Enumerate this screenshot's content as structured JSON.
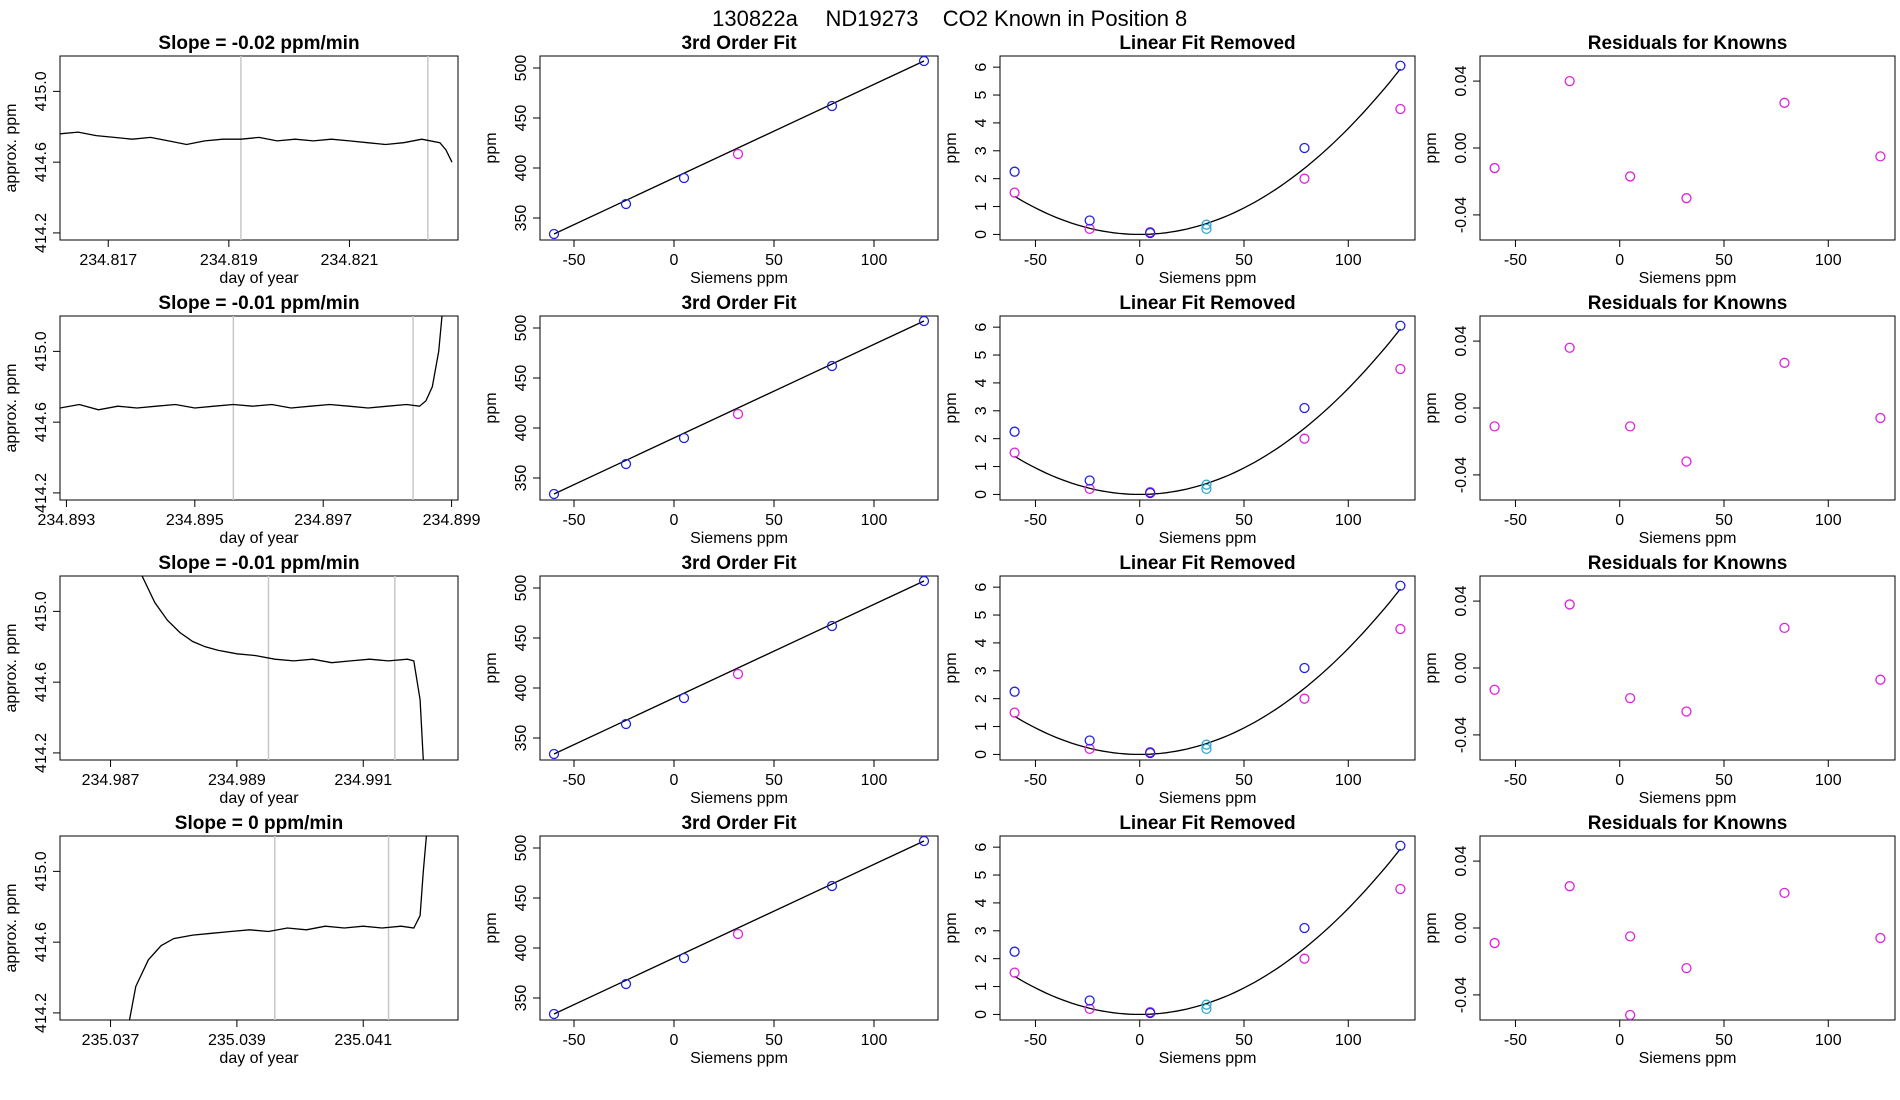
{
  "figure": {
    "title_parts": [
      "130822a",
      "ND19273",
      "CO2 Known in Position  8"
    ]
  },
  "panel_titles": {
    "fit": "3rd Order Fit",
    "linfit": "Linear Fit Removed",
    "resid": "Residuals for Knowns"
  },
  "axis_labels": {
    "time_x": "day of year",
    "time_y": "approx. ppm",
    "siemens_x": "Siemens ppm",
    "ppm_y": "ppm"
  },
  "colors": {
    "line": "#000000",
    "blue": "#2222dd",
    "magenta": "#dd22dd",
    "cyan": "#33a8cc",
    "guide": "#c8c8c8"
  },
  "chart_data": [
    {
      "row": 1,
      "type": "line",
      "title": "Slope =  -0.02  ppm/min",
      "xlabel": "day of year",
      "ylabel": "approx. ppm",
      "xlim": [
        234.8162,
        234.8228
      ],
      "ylim": [
        414.16,
        415.2
      ],
      "xticks": [
        234.817,
        234.819,
        234.821
      ],
      "xtick_labels": [
        "234.817",
        "234.819",
        "234.821"
      ],
      "yticks": [
        414.2,
        414.6,
        415.0
      ],
      "ytick_labels": [
        "414.2",
        "414.6",
        "415.0"
      ],
      "vlines": [
        234.8192,
        234.8223
      ],
      "trace": [
        [
          234.8162,
          414.76
        ],
        [
          234.8165,
          414.77
        ],
        [
          234.8168,
          414.75
        ],
        [
          234.8171,
          414.74
        ],
        [
          234.8174,
          414.73
        ],
        [
          234.8177,
          414.74
        ],
        [
          234.818,
          414.72
        ],
        [
          234.8183,
          414.7
        ],
        [
          234.8186,
          414.72
        ],
        [
          234.8189,
          414.73
        ],
        [
          234.8192,
          414.73
        ],
        [
          234.8195,
          414.74
        ],
        [
          234.8198,
          414.72
        ],
        [
          234.8201,
          414.73
        ],
        [
          234.8204,
          414.72
        ],
        [
          234.8207,
          414.73
        ],
        [
          234.821,
          414.72
        ],
        [
          234.8213,
          414.71
        ],
        [
          234.8216,
          414.7
        ],
        [
          234.8219,
          414.71
        ],
        [
          234.8222,
          414.73
        ],
        [
          234.8225,
          414.71
        ],
        [
          234.8226,
          414.67
        ],
        [
          234.8227,
          414.6
        ]
      ]
    },
    {
      "row": 2,
      "type": "line",
      "title": "Slope =  -0.01  ppm/min",
      "xlabel": "day of year",
      "ylabel": "approx. ppm",
      "xlim": [
        234.8929,
        234.8991
      ],
      "ylim": [
        414.16,
        415.2
      ],
      "xticks": [
        234.893,
        234.895,
        234.897,
        234.899
      ],
      "xtick_labels": [
        "234.893",
        "234.895",
        "234.897",
        "234.899"
      ],
      "yticks": [
        414.2,
        414.6,
        415.0
      ],
      "ytick_labels": [
        "414.2",
        "414.6",
        "415.0"
      ],
      "vlines": [
        234.8956,
        234.8984
      ],
      "trace": [
        [
          234.8929,
          414.68
        ],
        [
          234.8932,
          414.7
        ],
        [
          234.8935,
          414.67
        ],
        [
          234.8938,
          414.69
        ],
        [
          234.8941,
          414.68
        ],
        [
          234.8944,
          414.69
        ],
        [
          234.8947,
          414.7
        ],
        [
          234.895,
          414.68
        ],
        [
          234.8953,
          414.69
        ],
        [
          234.8956,
          414.7
        ],
        [
          234.8959,
          414.69
        ],
        [
          234.8962,
          414.7
        ],
        [
          234.8965,
          414.68
        ],
        [
          234.8968,
          414.69
        ],
        [
          234.8971,
          414.7
        ],
        [
          234.8974,
          414.69
        ],
        [
          234.8977,
          414.68
        ],
        [
          234.898,
          414.69
        ],
        [
          234.8983,
          414.7
        ],
        [
          234.8985,
          414.69
        ],
        [
          234.8986,
          414.72
        ],
        [
          234.8987,
          414.8
        ],
        [
          234.8988,
          415.0
        ],
        [
          234.89885,
          415.2
        ]
      ]
    },
    {
      "row": 3,
      "type": "line",
      "title": "Slope =  -0.01  ppm/min",
      "xlabel": "day of year",
      "ylabel": "approx. ppm",
      "xlim": [
        234.9862,
        234.9925
      ],
      "ylim": [
        414.16,
        415.2
      ],
      "xticks": [
        234.987,
        234.989,
        234.991
      ],
      "xtick_labels": [
        "234.987",
        "234.989",
        "234.991"
      ],
      "yticks": [
        414.2,
        414.6,
        415.0
      ],
      "ytick_labels": [
        "414.2",
        "414.6",
        "415.0"
      ],
      "vlines": [
        234.9895,
        234.9915
      ],
      "trace": [
        [
          234.9875,
          415.2
        ],
        [
          234.9877,
          415.05
        ],
        [
          234.9879,
          414.95
        ],
        [
          234.9881,
          414.88
        ],
        [
          234.9883,
          414.83
        ],
        [
          234.9885,
          414.8
        ],
        [
          234.9887,
          414.78
        ],
        [
          234.989,
          414.76
        ],
        [
          234.9893,
          414.75
        ],
        [
          234.9896,
          414.73
        ],
        [
          234.9899,
          414.72
        ],
        [
          234.9902,
          414.73
        ],
        [
          234.9905,
          414.71
        ],
        [
          234.9908,
          414.72
        ],
        [
          234.9911,
          414.73
        ],
        [
          234.9914,
          414.72
        ],
        [
          234.9917,
          414.73
        ],
        [
          234.9918,
          414.72
        ],
        [
          234.9919,
          414.5
        ],
        [
          234.99195,
          414.16
        ]
      ]
    },
    {
      "row": 4,
      "type": "line",
      "title": "Slope =  0  ppm/min",
      "xlabel": "day of year",
      "ylabel": "approx. ppm",
      "xlim": [
        235.0362,
        235.0425
      ],
      "ylim": [
        414.16,
        415.2
      ],
      "xticks": [
        235.037,
        235.039,
        235.041
      ],
      "xtick_labels": [
        "235.037",
        "235.039",
        "235.041"
      ],
      "yticks": [
        414.2,
        414.6,
        415.0
      ],
      "ytick_labels": [
        "414.2",
        "414.6",
        "415.0"
      ],
      "vlines": [
        235.0396,
        235.0414
      ],
      "trace": [
        [
          235.0373,
          414.16
        ],
        [
          235.0374,
          414.35
        ],
        [
          235.0376,
          414.5
        ],
        [
          235.0378,
          414.58
        ],
        [
          235.038,
          414.62
        ],
        [
          235.0383,
          414.64
        ],
        [
          235.0386,
          414.65
        ],
        [
          235.0389,
          414.66
        ],
        [
          235.0392,
          414.67
        ],
        [
          235.0395,
          414.66
        ],
        [
          235.0398,
          414.68
        ],
        [
          235.0401,
          414.67
        ],
        [
          235.0404,
          414.69
        ],
        [
          235.0407,
          414.68
        ],
        [
          235.041,
          414.69
        ],
        [
          235.0413,
          414.68
        ],
        [
          235.0416,
          414.69
        ],
        [
          235.0418,
          414.68
        ],
        [
          235.0419,
          414.75
        ],
        [
          235.04195,
          415.0
        ],
        [
          235.042,
          415.2
        ]
      ]
    },
    {
      "row_group": [
        1,
        2,
        3,
        4
      ],
      "type": "scatter",
      "title": "3rd Order Fit",
      "xlabel": "Siemens ppm",
      "ylabel": "ppm",
      "xlim": [
        -67,
        132
      ],
      "ylim": [
        328,
        512
      ],
      "xticks": [
        -50,
        0,
        50,
        100
      ],
      "xtick_labels": [
        "-50",
        "0",
        "50",
        "100"
      ],
      "yticks": [
        350,
        400,
        450,
        500
      ],
      "ytick_labels": [
        "350",
        "400",
        "450",
        "500"
      ],
      "fit_line": [
        [
          -60,
          334
        ],
        [
          125,
          507
        ]
      ],
      "points_blue": [
        [
          -60,
          334
        ],
        [
          -24,
          364
        ],
        [
          5,
          390
        ],
        [
          79,
          462
        ],
        [
          125,
          507
        ]
      ],
      "points_magenta": [
        [
          32,
          414
        ]
      ]
    },
    {
      "row_group": [
        1,
        2,
        3,
        4
      ],
      "type": "scatter",
      "title": "Linear Fit Removed",
      "xlabel": "Siemens ppm",
      "ylabel": "ppm",
      "xlim": [
        -67,
        132
      ],
      "ylim": [
        -0.2,
        6.4
      ],
      "xticks": [
        -50,
        0,
        50,
        100
      ],
      "xtick_labels": [
        "-50",
        "0",
        "50",
        "100"
      ],
      "yticks": [
        0,
        1,
        2,
        3,
        4,
        5,
        6
      ],
      "ytick_labels": [
        "0",
        "1",
        "2",
        "3",
        "4",
        "5",
        "6"
      ],
      "curve_y0": 0.0,
      "curve_a": 0.00038,
      "curve_x0": 0,
      "points_blue": [
        [
          -60,
          2.25
        ],
        [
          -24,
          0.5
        ],
        [
          5,
          0.05
        ],
        [
          79,
          3.1
        ],
        [
          125,
          6.05
        ]
      ],
      "points_magenta": [
        [
          -60,
          1.5
        ],
        [
          -24,
          0.2
        ],
        [
          5,
          0.08
        ],
        [
          79,
          2.0
        ],
        [
          125,
          4.5
        ]
      ],
      "points_cyan": [
        [
          32,
          0.35
        ],
        [
          32,
          0.2
        ]
      ]
    },
    {
      "row": 1,
      "type": "scatter",
      "title": "Residuals for Knowns",
      "xlabel": "Siemens ppm",
      "ylabel": "ppm",
      "xlim": [
        -67,
        132
      ],
      "ylim": [
        -0.055,
        0.055
      ],
      "xticks": [
        -50,
        0,
        50,
        100
      ],
      "xtick_labels": [
        "-50",
        "0",
        "50",
        "100"
      ],
      "yticks": [
        -0.04,
        0.0,
        0.04
      ],
      "ytick_labels": [
        "-0.04",
        "0.00",
        "0.04"
      ],
      "points": [
        [
          -60,
          -0.012
        ],
        [
          -24,
          0.04
        ],
        [
          5,
          -0.017
        ],
        [
          32,
          -0.03
        ],
        [
          79,
          0.027
        ],
        [
          125,
          -0.005
        ]
      ]
    },
    {
      "row": 2,
      "type": "scatter",
      "title": "Residuals for Knowns",
      "xlabel": "Siemens ppm",
      "ylabel": "ppm",
      "xlim": [
        -67,
        132
      ],
      "ylim": [
        -0.055,
        0.055
      ],
      "xticks": [
        -50,
        0,
        50,
        100
      ],
      "xtick_labels": [
        "-50",
        "0",
        "50",
        "100"
      ],
      "yticks": [
        -0.04,
        0.0,
        0.04
      ],
      "ytick_labels": [
        "-0.04",
        "0.00",
        "0.04"
      ],
      "points": [
        [
          -60,
          -0.011
        ],
        [
          -24,
          0.036
        ],
        [
          5,
          -0.011
        ],
        [
          32,
          -0.032
        ],
        [
          79,
          0.027
        ],
        [
          125,
          -0.006
        ]
      ]
    },
    {
      "row": 3,
      "type": "scatter",
      "title": "Residuals for Knowns",
      "xlabel": "Siemens ppm",
      "ylabel": "ppm",
      "xlim": [
        -67,
        132
      ],
      "ylim": [
        -0.055,
        0.055
      ],
      "xticks": [
        -50,
        0,
        50,
        100
      ],
      "xtick_labels": [
        "-50",
        "0",
        "50",
        "100"
      ],
      "yticks": [
        -0.04,
        0.0,
        0.04
      ],
      "ytick_labels": [
        "-0.04",
        "0.00",
        "0.04"
      ],
      "points": [
        [
          -60,
          -0.013
        ],
        [
          -24,
          0.038
        ],
        [
          5,
          -0.018
        ],
        [
          32,
          -0.026
        ],
        [
          79,
          0.024
        ],
        [
          125,
          -0.007
        ]
      ]
    },
    {
      "row": 4,
      "type": "scatter",
      "title": "Residuals for Knowns",
      "xlabel": "Siemens ppm",
      "ylabel": "ppm",
      "xlim": [
        -67,
        132
      ],
      "ylim": [
        -0.055,
        0.055
      ],
      "xticks": [
        -50,
        0,
        50,
        100
      ],
      "xtick_labels": [
        "-50",
        "0",
        "50",
        "100"
      ],
      "yticks": [
        -0.04,
        0.0,
        0.04
      ],
      "ytick_labels": [
        "-0.04",
        "0.00",
        "0.04"
      ],
      "points": [
        [
          -60,
          -0.009
        ],
        [
          -24,
          0.025
        ],
        [
          5,
          -0.005
        ],
        [
          32,
          -0.024
        ],
        [
          79,
          0.021
        ],
        [
          125,
          -0.006
        ],
        [
          5,
          -0.052
        ]
      ]
    }
  ]
}
